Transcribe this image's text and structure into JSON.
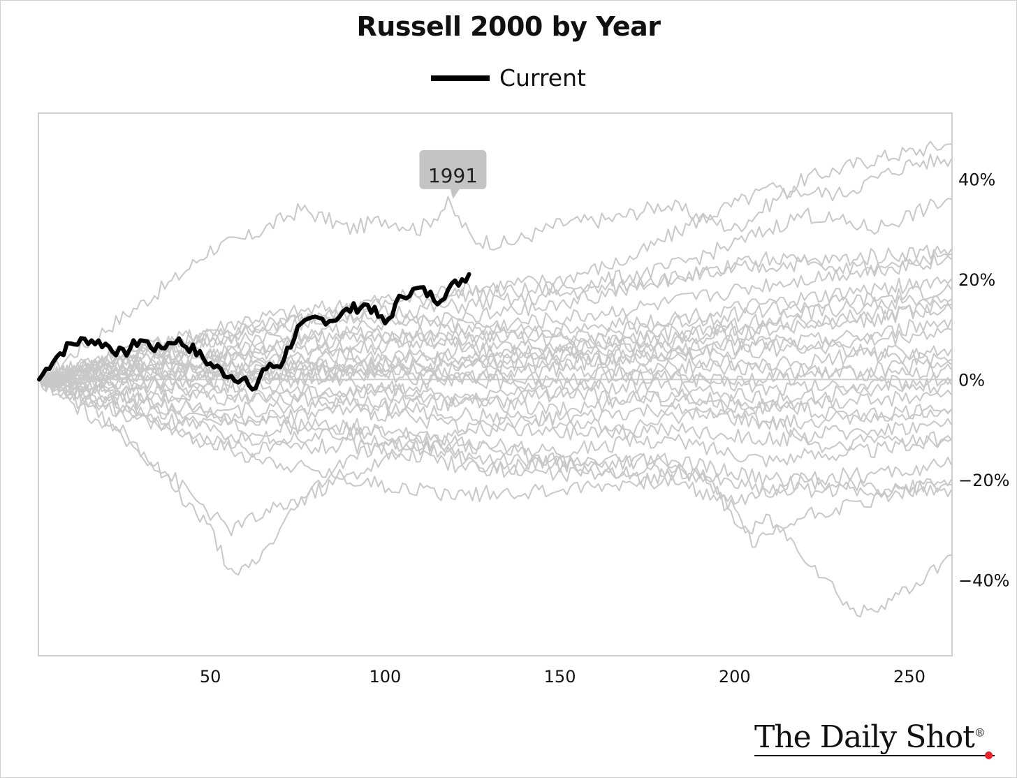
{
  "chart_data": {
    "type": "line",
    "title": "Russell 2000 by Year",
    "legend": {
      "position": "top-center",
      "entries": [
        "Current"
      ]
    },
    "xlim": [
      1,
      262
    ],
    "ylim": [
      -55,
      53
    ],
    "x_ticks": [
      50,
      100,
      150,
      200,
      250
    ],
    "y_ticks": [
      40,
      20,
      0,
      -20,
      -40
    ],
    "y_tick_labels": [
      "40%",
      "20%",
      "0%",
      "−20%",
      "−40%"
    ],
    "y_axis_side": "right",
    "zero_line": true,
    "annotation": {
      "text": "1991",
      "x": 125,
      "y": 31
    },
    "colors": {
      "current": "#000000",
      "history": "#c8c8c8",
      "tooltip": "#c4c4c4"
    },
    "current": {
      "name": "Current",
      "x": [
        1,
        5,
        10,
        15,
        20,
        25,
        30,
        35,
        40,
        45,
        50,
        55,
        60,
        62,
        65,
        70,
        75,
        80,
        85,
        90,
        95,
        100,
        105,
        110,
        115,
        120,
        124
      ],
      "y": [
        0,
        4,
        7,
        8,
        7,
        5,
        8,
        6,
        8,
        6,
        3,
        1,
        0,
        -3,
        2,
        3,
        10,
        12,
        12,
        14,
        15,
        11,
        17,
        18,
        16,
        19,
        21
      ]
    },
    "history": [
      {
        "x": [
          1,
          20,
          40,
          50,
          60,
          76,
          90,
          100,
          110,
          118,
          125,
          135,
          150,
          165,
          180,
          200,
          220,
          240,
          262
        ],
        "y": [
          0,
          10,
          20,
          26,
          28,
          34,
          30,
          32,
          30,
          35,
          28,
          27,
          31,
          32,
          35,
          30,
          40,
          44,
          47
        ]
      },
      {
        "x": [
          1,
          30,
          60,
          90,
          120,
          150,
          170,
          190,
          210,
          230,
          250,
          262
        ],
        "y": [
          0,
          6,
          12,
          15,
          18,
          20,
          24,
          32,
          38,
          37,
          43,
          44
        ]
      },
      {
        "x": [
          1,
          30,
          60,
          90,
          120,
          150,
          180,
          200,
          220,
          240,
          262
        ],
        "y": [
          0,
          5,
          10,
          14,
          17,
          18,
          22,
          27,
          33,
          30,
          36
        ]
      },
      {
        "x": [
          1,
          25,
          50,
          80,
          110,
          140,
          170,
          200,
          230,
          262
        ],
        "y": [
          0,
          4,
          8,
          12,
          14,
          16,
          19,
          22,
          24,
          26
        ]
      },
      {
        "x": [
          1,
          30,
          60,
          90,
          120,
          150,
          180,
          210,
          240,
          262
        ],
        "y": [
          0,
          3,
          6,
          8,
          10,
          12,
          15,
          19,
          22,
          24
        ]
      },
      {
        "x": [
          1,
          30,
          60,
          90,
          120,
          150,
          180,
          210,
          240,
          262
        ],
        "y": [
          0,
          2,
          4,
          6,
          8,
          10,
          12,
          15,
          18,
          20
        ]
      },
      {
        "x": [
          1,
          30,
          60,
          90,
          120,
          150,
          180,
          210,
          240,
          262
        ],
        "y": [
          0,
          4,
          5,
          7,
          9,
          8,
          11,
          14,
          16,
          18
        ]
      },
      {
        "x": [
          1,
          30,
          60,
          90,
          120,
          150,
          180,
          210,
          240,
          262
        ],
        "y": [
          0,
          1,
          3,
          5,
          4,
          6,
          8,
          12,
          15,
          16
        ]
      },
      {
        "x": [
          1,
          30,
          60,
          90,
          120,
          150,
          180,
          210,
          240,
          262
        ],
        "y": [
          0,
          2,
          1,
          3,
          6,
          5,
          7,
          10,
          13,
          14
        ]
      },
      {
        "x": [
          1,
          30,
          60,
          90,
          120,
          150,
          180,
          210,
          240,
          262
        ],
        "y": [
          0,
          5,
          8,
          9,
          7,
          6,
          9,
          11,
          12,
          15
        ]
      },
      {
        "x": [
          1,
          30,
          60,
          90,
          120,
          150,
          180,
          210,
          240,
          262
        ],
        "y": [
          0,
          1,
          2,
          3,
          2,
          4,
          5,
          7,
          9,
          12
        ]
      },
      {
        "x": [
          1,
          30,
          60,
          90,
          120,
          150,
          180,
          210,
          240,
          262
        ],
        "y": [
          0,
          -1,
          1,
          2,
          4,
          3,
          5,
          6,
          8,
          10
        ]
      },
      {
        "x": [
          1,
          30,
          60,
          90,
          120,
          150,
          180,
          210,
          240,
          262
        ],
        "y": [
          0,
          2,
          0,
          1,
          3,
          5,
          4,
          3,
          5,
          6
        ]
      },
      {
        "x": [
          1,
          30,
          60,
          90,
          120,
          150,
          180,
          210,
          240,
          262
        ],
        "y": [
          0,
          0,
          -1,
          1,
          0,
          2,
          1,
          0,
          2,
          3
        ]
      },
      {
        "x": [
          1,
          30,
          60,
          90,
          120,
          150,
          180,
          210,
          240,
          262
        ],
        "y": [
          0,
          -2,
          -1,
          -3,
          0,
          -1,
          1,
          -2,
          -1,
          0
        ]
      },
      {
        "x": [
          1,
          30,
          60,
          90,
          120,
          150,
          180,
          210,
          240,
          262
        ],
        "y": [
          0,
          -3,
          -4,
          -2,
          -5,
          -3,
          -4,
          -6,
          -4,
          -3
        ]
      },
      {
        "x": [
          1,
          30,
          60,
          90,
          120,
          150,
          180,
          210,
          240,
          262
        ],
        "y": [
          0,
          -4,
          -6,
          -5,
          -7,
          -8,
          -6,
          -9,
          -7,
          -6
        ]
      },
      {
        "x": [
          1,
          30,
          60,
          90,
          120,
          150,
          180,
          210,
          240,
          262
        ],
        "y": [
          0,
          -5,
          -8,
          -6,
          -9,
          -11,
          -10,
          -12,
          -10,
          -9
        ]
      },
      {
        "x": [
          1,
          30,
          60,
          90,
          120,
          150,
          180,
          210,
          240,
          262
        ],
        "y": [
          0,
          -6,
          -10,
          -9,
          -13,
          -14,
          -12,
          -16,
          -14,
          -12
        ]
      },
      {
        "x": [
          1,
          30,
          60,
          90,
          120,
          150,
          180,
          210,
          240,
          262
        ],
        "y": [
          0,
          -7,
          -12,
          -11,
          -15,
          -17,
          -16,
          -20,
          -19,
          -17
        ]
      },
      {
        "x": [
          1,
          30,
          60,
          90,
          120,
          150,
          180,
          210,
          240,
          262
        ],
        "y": [
          0,
          -8,
          -14,
          -13,
          -17,
          -19,
          -18,
          -22,
          -22,
          -21
        ]
      },
      {
        "x": [
          1,
          25,
          40,
          55,
          75,
          100,
          120,
          140,
          160,
          180,
          200,
          220,
          240,
          262
        ],
        "y": [
          0,
          -12,
          -20,
          -30,
          -24,
          -16,
          -12,
          -15,
          -17,
          -16,
          -24,
          -20,
          -22,
          -22
        ]
      },
      {
        "x": [
          1,
          25,
          40,
          50,
          57,
          65,
          75,
          90,
          110,
          130,
          150,
          170,
          190,
          202,
          210,
          220,
          235,
          250,
          262
        ],
        "y": [
          0,
          -10,
          -22,
          -30,
          -40,
          -35,
          -25,
          -15,
          -12,
          -18,
          -16,
          -20,
          -18,
          -30,
          -28,
          -35,
          -47,
          -42,
          -35
        ]
      },
      {
        "x": [
          1,
          30,
          60,
          90,
          120,
          150,
          180,
          200,
          205,
          220,
          240,
          262
        ],
        "y": [
          0,
          -8,
          -15,
          -20,
          -23,
          -22,
          -20,
          -25,
          -33,
          -27,
          -24,
          -20
        ]
      },
      {
        "x": [
          1,
          30,
          60,
          90,
          118,
          130,
          150,
          170,
          190,
          210,
          225,
          240,
          262
        ],
        "y": [
          0,
          -4,
          -8,
          -10,
          -12,
          -9,
          -8,
          -10,
          -6,
          -8,
          -14,
          -12,
          -12
        ]
      },
      {
        "x": [
          1,
          30,
          60,
          90,
          120,
          150,
          180,
          210,
          240,
          262
        ],
        "y": [
          0,
          3,
          2,
          -1,
          -4,
          -6,
          -3,
          -5,
          -8,
          -6
        ]
      },
      {
        "x": [
          1,
          30,
          60,
          90,
          120,
          150,
          180,
          210,
          240,
          262
        ],
        "y": [
          0,
          6,
          4,
          2,
          1,
          0,
          3,
          2,
          1,
          2
        ]
      },
      {
        "x": [
          1,
          30,
          60,
          90,
          120,
          150,
          180,
          210,
          240,
          262
        ],
        "y": [
          0,
          7,
          10,
          13,
          11,
          9,
          6,
          8,
          5,
          4
        ]
      },
      {
        "x": [
          1,
          30,
          60,
          90,
          120,
          150,
          180,
          210,
          240,
          262
        ],
        "y": [
          0,
          -1,
          -3,
          -5,
          -4,
          -2,
          -1,
          -4,
          -2,
          -1
        ]
      },
      {
        "x": [
          1,
          30,
          60,
          90,
          120,
          150,
          180,
          210,
          240,
          262
        ],
        "y": [
          0,
          3,
          6,
          10,
          12,
          15,
          20,
          24,
          22,
          25
        ]
      }
    ]
  },
  "legend_label": "Current",
  "annotation_text": "1991",
  "brand": {
    "name": "The Daily Shot",
    "mark": "®"
  }
}
